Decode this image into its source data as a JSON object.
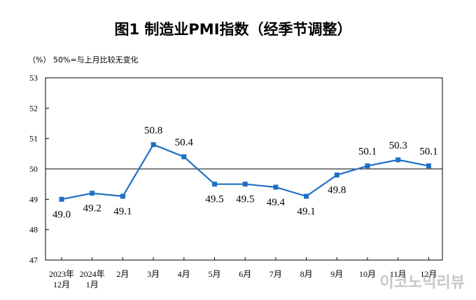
{
  "chart_data": {
    "type": "line",
    "title": "图1  制造业PMI指数（经季节调整）",
    "ylabel_unit": "（%）",
    "note": "50%=与上月比较无变化",
    "ylim": [
      47,
      53
    ],
    "yticks": [
      47,
      48,
      49,
      50,
      51,
      52,
      53
    ],
    "reference_line": 50,
    "categories": [
      "2023年\n12月",
      "2024年\n1月",
      "2月",
      "3月",
      "4月",
      "5月",
      "6月",
      "7月",
      "8月",
      "9月",
      "10月",
      "11月",
      "12月"
    ],
    "series": [
      {
        "name": "制造业PMI",
        "color": "#1f6fc5",
        "values": [
          49.0,
          49.2,
          49.1,
          50.8,
          50.4,
          49.5,
          49.5,
          49.4,
          49.1,
          49.8,
          50.1,
          50.3,
          50.1
        ],
        "labels": [
          "49.0",
          "49.2",
          "49.1",
          "50.8",
          "50.4",
          "49.5",
          "49.5",
          "49.4",
          "49.1",
          "49.8",
          "50.1",
          "50.3",
          "50.1"
        ]
      }
    ]
  },
  "watermark": "이코노믹리뷰"
}
